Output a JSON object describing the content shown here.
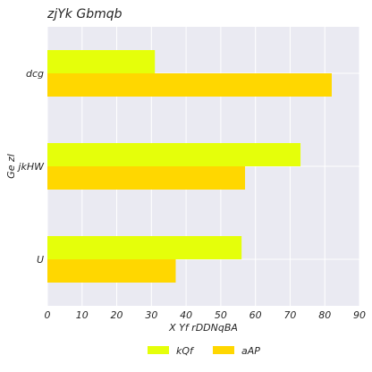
{
  "chart_data": {
    "type": "bar",
    "orientation": "horizontal",
    "title": "zjYk Gbmqb",
    "xlabel": "X Yf rDDNqBA",
    "ylabel": "Ge  zl",
    "categories": [
      "dcg",
      "jkHW",
      "U"
    ],
    "series": [
      {
        "name": "kQf",
        "values": [
          31,
          73,
          56
        ],
        "color": "#e5ff0a"
      },
      {
        "name": "aAP",
        "values": [
          82,
          57,
          37
        ],
        "color": "#ffd700"
      }
    ],
    "xlim": [
      0,
      90
    ],
    "xticks": [
      0,
      10,
      20,
      30,
      40,
      50,
      60,
      70,
      80,
      90
    ],
    "grid": true,
    "legend_position": "bottom-center",
    "background": "#eaeaf2"
  }
}
